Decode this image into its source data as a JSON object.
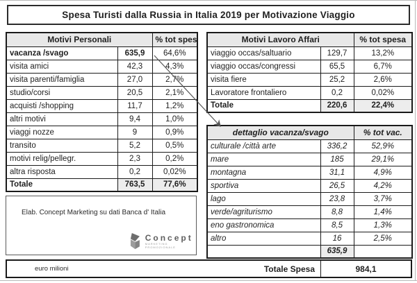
{
  "title": "Spesa Turisti dalla Russia in Italia 2019 per Motivazione Viaggio",
  "personal_table": {
    "header": "Motivi Personali",
    "pct_header": "% tot spesa",
    "rows": [
      {
        "label": "vacanza /svago",
        "value": "635,9",
        "pct": "64,6%",
        "bold": true
      },
      {
        "label": "visita amici",
        "value": "42,3",
        "pct": "4,3%"
      },
      {
        "label": "visita parenti/famiglia",
        "value": "27,0",
        "pct": "2,7%"
      },
      {
        "label": "studio/corsi",
        "value": "20,5",
        "pct": "2,1%"
      },
      {
        "label": "acquisti /shopping",
        "value": "11,7",
        "pct": "1,2%"
      },
      {
        "label": "altri motivi",
        "value": "9,4",
        "pct": "1,0%"
      },
      {
        "label": "viaggi nozze",
        "value": "9",
        "pct": "0,9%"
      },
      {
        "label": "transito",
        "value": "5,2",
        "pct": "0,5%"
      },
      {
        "label": "motivi relig/pellegr.",
        "value": "2,3",
        "pct": "0,2%"
      },
      {
        "label": "altra risposta",
        "value": "0,2",
        "pct": "0,02%"
      }
    ],
    "total": {
      "label": "Totale",
      "value": "763,5",
      "pct": "77,6%"
    }
  },
  "business_table": {
    "header": "Motivi Lavoro Affari",
    "pct_header": "% tot spesa",
    "rows": [
      {
        "label": "viaggio occas/saltuario",
        "value": "129,7",
        "pct": "13,2%"
      },
      {
        "label": "viaggio occas/congressi",
        "value": "65,5",
        "pct": "6,7%"
      },
      {
        "label": "visita fiere",
        "value": "25,2",
        "pct": "2,6%"
      },
      {
        "label": "Lavoratore frontaliero",
        "value": "0,2",
        "pct": "0,02%"
      }
    ],
    "total": {
      "label": "Totale",
      "value": "220,6",
      "pct": "22,4%"
    }
  },
  "detail_table": {
    "header": "dettaglio vacanza/svago",
    "pct_header": "% tot vac.",
    "rows": [
      {
        "label": "culturale /città arte",
        "value": "336,2",
        "pct": "52,9%"
      },
      {
        "label": "mare",
        "value": "185",
        "pct": "29,1%"
      },
      {
        "label": "montagna",
        "value": "31,1",
        "pct": "4,9%"
      },
      {
        "label": "sportiva",
        "value": "26,5",
        "pct": "4,2%"
      },
      {
        "label": "lago",
        "value": "23,8",
        "pct": "3,7%"
      },
      {
        "label": "verde/agriturismo",
        "value": "8,8",
        "pct": "1,4%"
      },
      {
        "label": "eno gastronomica",
        "value": "8,5",
        "pct": "1,3%"
      },
      {
        "label": "altro",
        "value": "16",
        "pct": "2,5%"
      }
    ],
    "footer_value": "635,9"
  },
  "source_note": "Elab. Concept Marketing su dati Banca d' Italia",
  "logo": {
    "name": "Concept",
    "subtext": "MARKETING PROMOZIONALE"
  },
  "footer": {
    "unit": "euro milioni",
    "total_label": "Totale Spesa",
    "total_value": "984,1"
  },
  "colors": {
    "header_fill": "#e8e8e8",
    "total_fill": "#ededed",
    "border": "#1a1a1a",
    "arrow": "#555555"
  }
}
